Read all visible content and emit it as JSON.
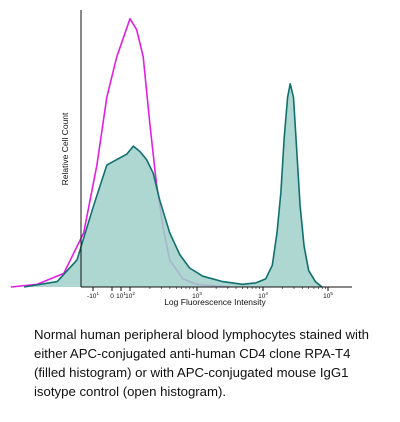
{
  "chart_data": {
    "type": "area",
    "xlabel": "Log Fluorescence Intensity",
    "ylabel": "Relative Cell Count",
    "x_scale": "log",
    "xlim": [
      -15,
      100000
    ],
    "ylim": [
      0,
      1.0
    ],
    "tick_labels": [
      {
        "value": -10,
        "base": "-10",
        "exp": "1"
      },
      {
        "value": 0,
        "base": "0",
        "exp": ""
      },
      {
        "value": 10,
        "base": "10",
        "exp": "1"
      },
      {
        "value": 100,
        "base": "10",
        "exp": "2"
      },
      {
        "value": 1000,
        "base": "10",
        "exp": "3"
      },
      {
        "value": 10000,
        "base": "10",
        "exp": "4"
      },
      {
        "value": 100000,
        "base": "10",
        "exp": "5"
      }
    ],
    "grid": false,
    "series": [
      {
        "color": "#e020e0",
        "fill": false,
        "points": [
          [
            0.2,
            0.0
          ],
          [
            0.6,
            0.01
          ],
          [
            1.0,
            0.05
          ],
          [
            1.3,
            0.2
          ],
          [
            1.5,
            0.45
          ],
          [
            1.65,
            0.7
          ],
          [
            1.8,
            0.85
          ],
          [
            1.9,
            0.92
          ],
          [
            2.0,
            0.99
          ],
          [
            2.1,
            0.95
          ],
          [
            2.2,
            0.85
          ],
          [
            2.3,
            0.6
          ],
          [
            2.4,
            0.38
          ],
          [
            2.5,
            0.22
          ],
          [
            2.6,
            0.1
          ],
          [
            2.8,
            0.03
          ],
          [
            3.0,
            0.01
          ],
          [
            3.5,
            0.0
          ]
        ]
      },
      {
        "color": "#107070",
        "fill": true,
        "points": [
          [
            0.4,
            0.0
          ],
          [
            0.9,
            0.02
          ],
          [
            1.2,
            0.1
          ],
          [
            1.45,
            0.3
          ],
          [
            1.65,
            0.45
          ],
          [
            1.8,
            0.47
          ],
          [
            1.95,
            0.49
          ],
          [
            2.05,
            0.52
          ],
          [
            2.15,
            0.5
          ],
          [
            2.25,
            0.47
          ],
          [
            2.35,
            0.42
          ],
          [
            2.45,
            0.32
          ],
          [
            2.6,
            0.2
          ],
          [
            2.75,
            0.12
          ],
          [
            2.9,
            0.07
          ],
          [
            3.1,
            0.04
          ],
          [
            3.4,
            0.02
          ],
          [
            3.7,
            0.01
          ],
          [
            3.9,
            0.015
          ],
          [
            4.05,
            0.03
          ],
          [
            4.15,
            0.08
          ],
          [
            4.22,
            0.2
          ],
          [
            4.28,
            0.35
          ],
          [
            4.33,
            0.55
          ],
          [
            4.38,
            0.7
          ],
          [
            4.42,
            0.75
          ],
          [
            4.47,
            0.7
          ],
          [
            4.52,
            0.5
          ],
          [
            4.57,
            0.3
          ],
          [
            4.63,
            0.15
          ],
          [
            4.7,
            0.06
          ],
          [
            4.8,
            0.02
          ],
          [
            4.9,
            0.0
          ]
        ]
      }
    ]
  },
  "caption": "Normal human peripheral blood lymphocytes stained with either APC-conjugated anti-human CD4 clone RPA-T4 (filled histogram) or with APC-conjugated mouse IgG1 isotype control (open histogram).",
  "colors": {
    "axis": "#111111",
    "filled": "#107070",
    "filled_fill": "#9fd0c8",
    "open": "#e020e0"
  }
}
